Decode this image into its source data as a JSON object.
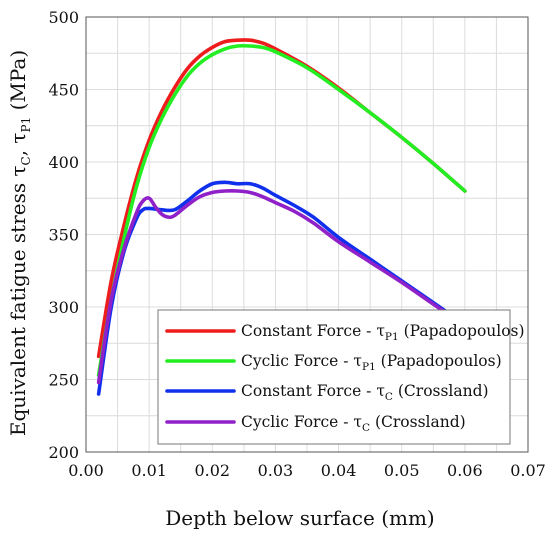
{
  "chart_data": {
    "type": "line",
    "xlabel": "Depth below surface (mm)",
    "ylabel": {
      "prefix": "Equivalent fatigue stress τ",
      "sub1": "C",
      "mid": ", τ",
      "sub2": "P1",
      "suffix": "  (MPa)"
    },
    "xlim": [
      0,
      0.07
    ],
    "ylim": [
      200,
      500
    ],
    "xticks": [
      0,
      0.01,
      0.02,
      0.03,
      0.04,
      0.05,
      0.06,
      0.07
    ],
    "xtick_labels": [
      "0.00",
      "0.01",
      "0.02",
      "0.03",
      "0.04",
      "0.05",
      "0.06",
      "0.07"
    ],
    "yticks": [
      200,
      250,
      300,
      350,
      400,
      450,
      500
    ],
    "ytick_labels": [
      "200",
      "250",
      "300",
      "350",
      "400",
      "450",
      "500"
    ],
    "grid": true,
    "legend_position": "bottom-right",
    "series": [
      {
        "name": "Constant Force - τP1 (Papadopoulos)",
        "legend": {
          "pre": "Constant Force - τ",
          "sub": "P1",
          "post": " (Papadopoulos)"
        },
        "color": "#ee1c1c",
        "x": [
          0.002,
          0.004,
          0.006,
          0.008,
          0.01,
          0.012,
          0.014,
          0.016,
          0.018,
          0.02,
          0.022,
          0.024,
          0.026,
          0.028,
          0.03,
          0.035,
          0.04,
          0.045,
          0.05,
          0.055,
          0.06
        ],
        "y": [
          266,
          318,
          356,
          389,
          415,
          435,
          451,
          464,
          473,
          479,
          483,
          484,
          484,
          482,
          478,
          466,
          451,
          434,
          417,
          399,
          380
        ]
      },
      {
        "name": "Cyclic Force - τP1 (Papadopoulos)",
        "legend": {
          "pre": "Cyclic Force - τ",
          "sub": "P1",
          "post": " (Papadopoulos)"
        },
        "color": "#22ee22",
        "x": [
          0.002,
          0.004,
          0.006,
          0.008,
          0.01,
          0.012,
          0.014,
          0.016,
          0.018,
          0.02,
          0.022,
          0.024,
          0.026,
          0.028,
          0.03,
          0.035,
          0.04,
          0.045,
          0.05,
          0.055,
          0.06
        ],
        "y": [
          253,
          305,
          347,
          383,
          410,
          430,
          446,
          459,
          468,
          474,
          478,
          480,
          480,
          479,
          476,
          465,
          450,
          434,
          417,
          399,
          380
        ]
      },
      {
        "name": "Constant Force - τC (Crossland)",
        "legend": {
          "pre": "Constant Force -  τ",
          "sub": "C",
          "post": " (Crossland)"
        },
        "color": "#1030ee",
        "x": [
          0.002,
          0.004,
          0.006,
          0.008,
          0.009,
          0.01,
          0.012,
          0.014,
          0.016,
          0.018,
          0.02,
          0.022,
          0.024,
          0.026,
          0.028,
          0.03,
          0.033,
          0.036,
          0.04,
          0.045,
          0.05,
          0.055,
          0.06
        ],
        "y": [
          240,
          300,
          338,
          361,
          367,
          368,
          367,
          367,
          373,
          380,
          385,
          386,
          385,
          385,
          382,
          377,
          370,
          362,
          348,
          333,
          318,
          303,
          288
        ]
      },
      {
        "name": "Cyclic Force - τC (Crossland)",
        "legend": {
          "pre": "Cyclic Force - τ",
          "sub": "C",
          "post": " (Crossland)"
        },
        "color": "#9020c8",
        "x": [
          0.002,
          0.004,
          0.006,
          0.008,
          0.009,
          0.01,
          0.011,
          0.012,
          0.013,
          0.014,
          0.016,
          0.018,
          0.02,
          0.022,
          0.024,
          0.026,
          0.028,
          0.03,
          0.033,
          0.036,
          0.04,
          0.045,
          0.05,
          0.055,
          0.06
        ],
        "y": [
          248,
          305,
          340,
          365,
          373,
          375,
          369,
          364,
          362,
          363,
          370,
          376,
          379,
          380,
          380,
          379,
          376,
          372,
          366,
          358,
          345,
          331,
          317,
          302,
          287
        ]
      }
    ]
  }
}
